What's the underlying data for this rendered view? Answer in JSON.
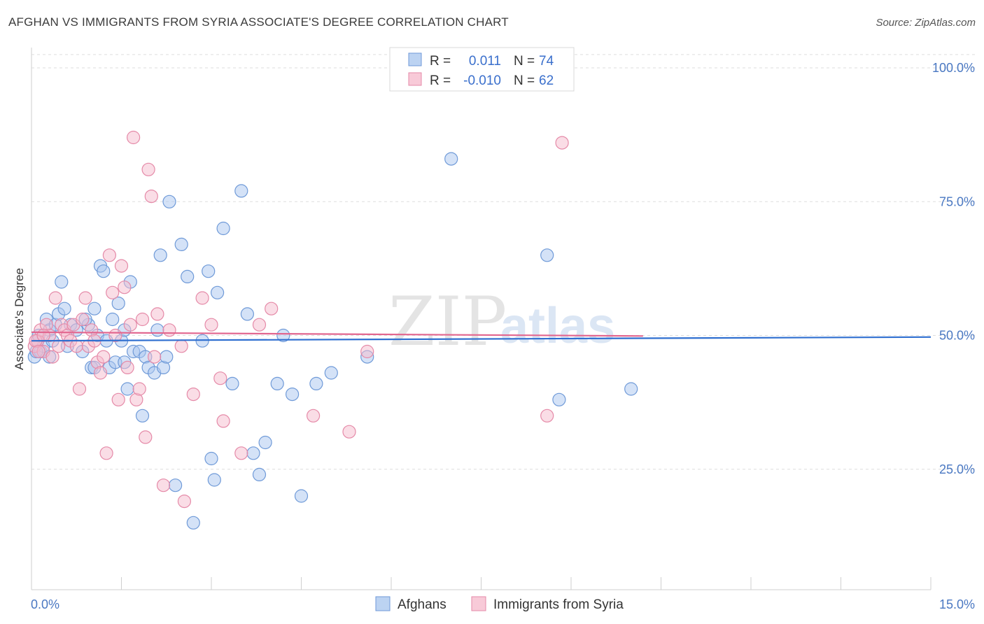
{
  "title": "AFGHAN VS IMMIGRANTS FROM SYRIA ASSOCIATE'S DEGREE CORRELATION CHART",
  "source": "Source: ZipAtlas.com",
  "watermark": {
    "part1": "ZIP",
    "part2": "atlas"
  },
  "colors": {
    "afghans_fill": "#a9c6ef",
    "afghans_stroke": "#6f9ad8",
    "afghans_line": "#2f6fd0",
    "syria_fill": "#f6bccd",
    "syria_stroke": "#e58aa8",
    "syria_line": "#e2668f"
  },
  "legend": {
    "rows": [
      {
        "r_label": "R =",
        "r_value": "0.011",
        "n_label": "N =",
        "n_value": "74"
      },
      {
        "r_label": "R =",
        "r_value": "-0.010",
        "n_label": "N =",
        "n_value": "62"
      }
    ]
  },
  "chart_data": {
    "type": "scatter",
    "title": "AFGHAN VS IMMIGRANTS FROM SYRIA ASSOCIATE'S DEGREE CORRELATION CHART",
    "xlabel": "",
    "ylabel": "Associate's Degree",
    "xlim": [
      0,
      15
    ],
    "ylim": [
      0,
      100
    ],
    "x_tick_labels": [
      "0.0%",
      "15.0%"
    ],
    "y_tick_values": [
      25,
      50,
      75,
      100
    ],
    "y_tick_labels": [
      "25.0%",
      "50.0%",
      "75.0%",
      "100.0%"
    ],
    "grid": true,
    "legend_position": "top-center",
    "series": [
      {
        "name": "Afghans",
        "r": 0.011,
        "n": 74,
        "trend": {
          "x": [
            0,
            15
          ],
          "y": [
            49.0,
            49.7
          ]
        },
        "x": [
          0.05,
          0.1,
          0.15,
          0.2,
          0.25,
          0.3,
          0.35,
          0.4,
          0.45,
          0.5,
          0.55,
          0.6,
          0.65,
          0.75,
          0.85,
          0.95,
          1.0,
          1.05,
          1.1,
          1.15,
          1.2,
          1.25,
          1.3,
          1.35,
          1.4,
          1.45,
          1.5,
          1.55,
          1.6,
          1.65,
          1.7,
          1.8,
          1.85,
          1.9,
          1.95,
          2.05,
          2.1,
          2.15,
          2.2,
          2.3,
          2.4,
          2.5,
          2.6,
          2.7,
          2.85,
          2.95,
          3.0,
          3.05,
          3.1,
          3.2,
          3.35,
          3.5,
          3.6,
          3.7,
          3.8,
          3.9,
          4.1,
          4.2,
          4.35,
          4.5,
          4.75,
          5.0,
          5.6,
          7.0,
          8.8,
          8.6,
          10.0,
          0.08,
          0.12,
          0.3,
          0.9,
          1.05,
          1.55,
          2.25
        ],
        "y": [
          46,
          49,
          47,
          48,
          53,
          51,
          49,
          52,
          54,
          60,
          55,
          48,
          52,
          51,
          47,
          52,
          44,
          55,
          50,
          63,
          62,
          49,
          44,
          53,
          45,
          56,
          49,
          45,
          40,
          60,
          47,
          47,
          35,
          46,
          44,
          43,
          51,
          65,
          44,
          75,
          22,
          67,
          61,
          15,
          49,
          62,
          27,
          23,
          58,
          70,
          41,
          77,
          54,
          28,
          24,
          30,
          41,
          50,
          39,
          20,
          41,
          43,
          46,
          83,
          38,
          65,
          40,
          47,
          50,
          46,
          53,
          44,
          51,
          46
        ]
      },
      {
        "name": "Immigrants from Syria",
        "r": -0.01,
        "n": 62,
        "trend": {
          "x": [
            0,
            10.2
          ],
          "y": [
            50.6,
            49.9
          ]
        },
        "x": [
          0.05,
          0.1,
          0.15,
          0.2,
          0.25,
          0.3,
          0.35,
          0.4,
          0.45,
          0.5,
          0.55,
          0.6,
          0.65,
          0.7,
          0.75,
          0.8,
          0.85,
          0.9,
          0.95,
          1.0,
          1.05,
          1.1,
          1.15,
          1.2,
          1.25,
          1.3,
          1.35,
          1.4,
          1.45,
          1.5,
          1.55,
          1.6,
          1.65,
          1.7,
          1.75,
          1.8,
          1.85,
          1.9,
          1.95,
          2.0,
          2.05,
          2.1,
          2.2,
          2.3,
          2.5,
          2.55,
          2.7,
          2.85,
          3.0,
          3.15,
          3.2,
          3.5,
          3.8,
          4.0,
          4.7,
          5.3,
          5.6,
          8.6,
          8.85,
          0.07,
          0.12,
          0.2
        ],
        "y": [
          48,
          49,
          51,
          47,
          52,
          50,
          46,
          57,
          48,
          52,
          51,
          50,
          49,
          52,
          48,
          40,
          53,
          57,
          48,
          51,
          49,
          45,
          43,
          46,
          28,
          65,
          58,
          50,
          38,
          63,
          59,
          44,
          52,
          87,
          38,
          40,
          53,
          31,
          81,
          76,
          46,
          54,
          22,
          51,
          48,
          19,
          39,
          57,
          52,
          42,
          34,
          28,
          52,
          55,
          35,
          32,
          47,
          35,
          86,
          49,
          47,
          50
        ]
      }
    ]
  }
}
